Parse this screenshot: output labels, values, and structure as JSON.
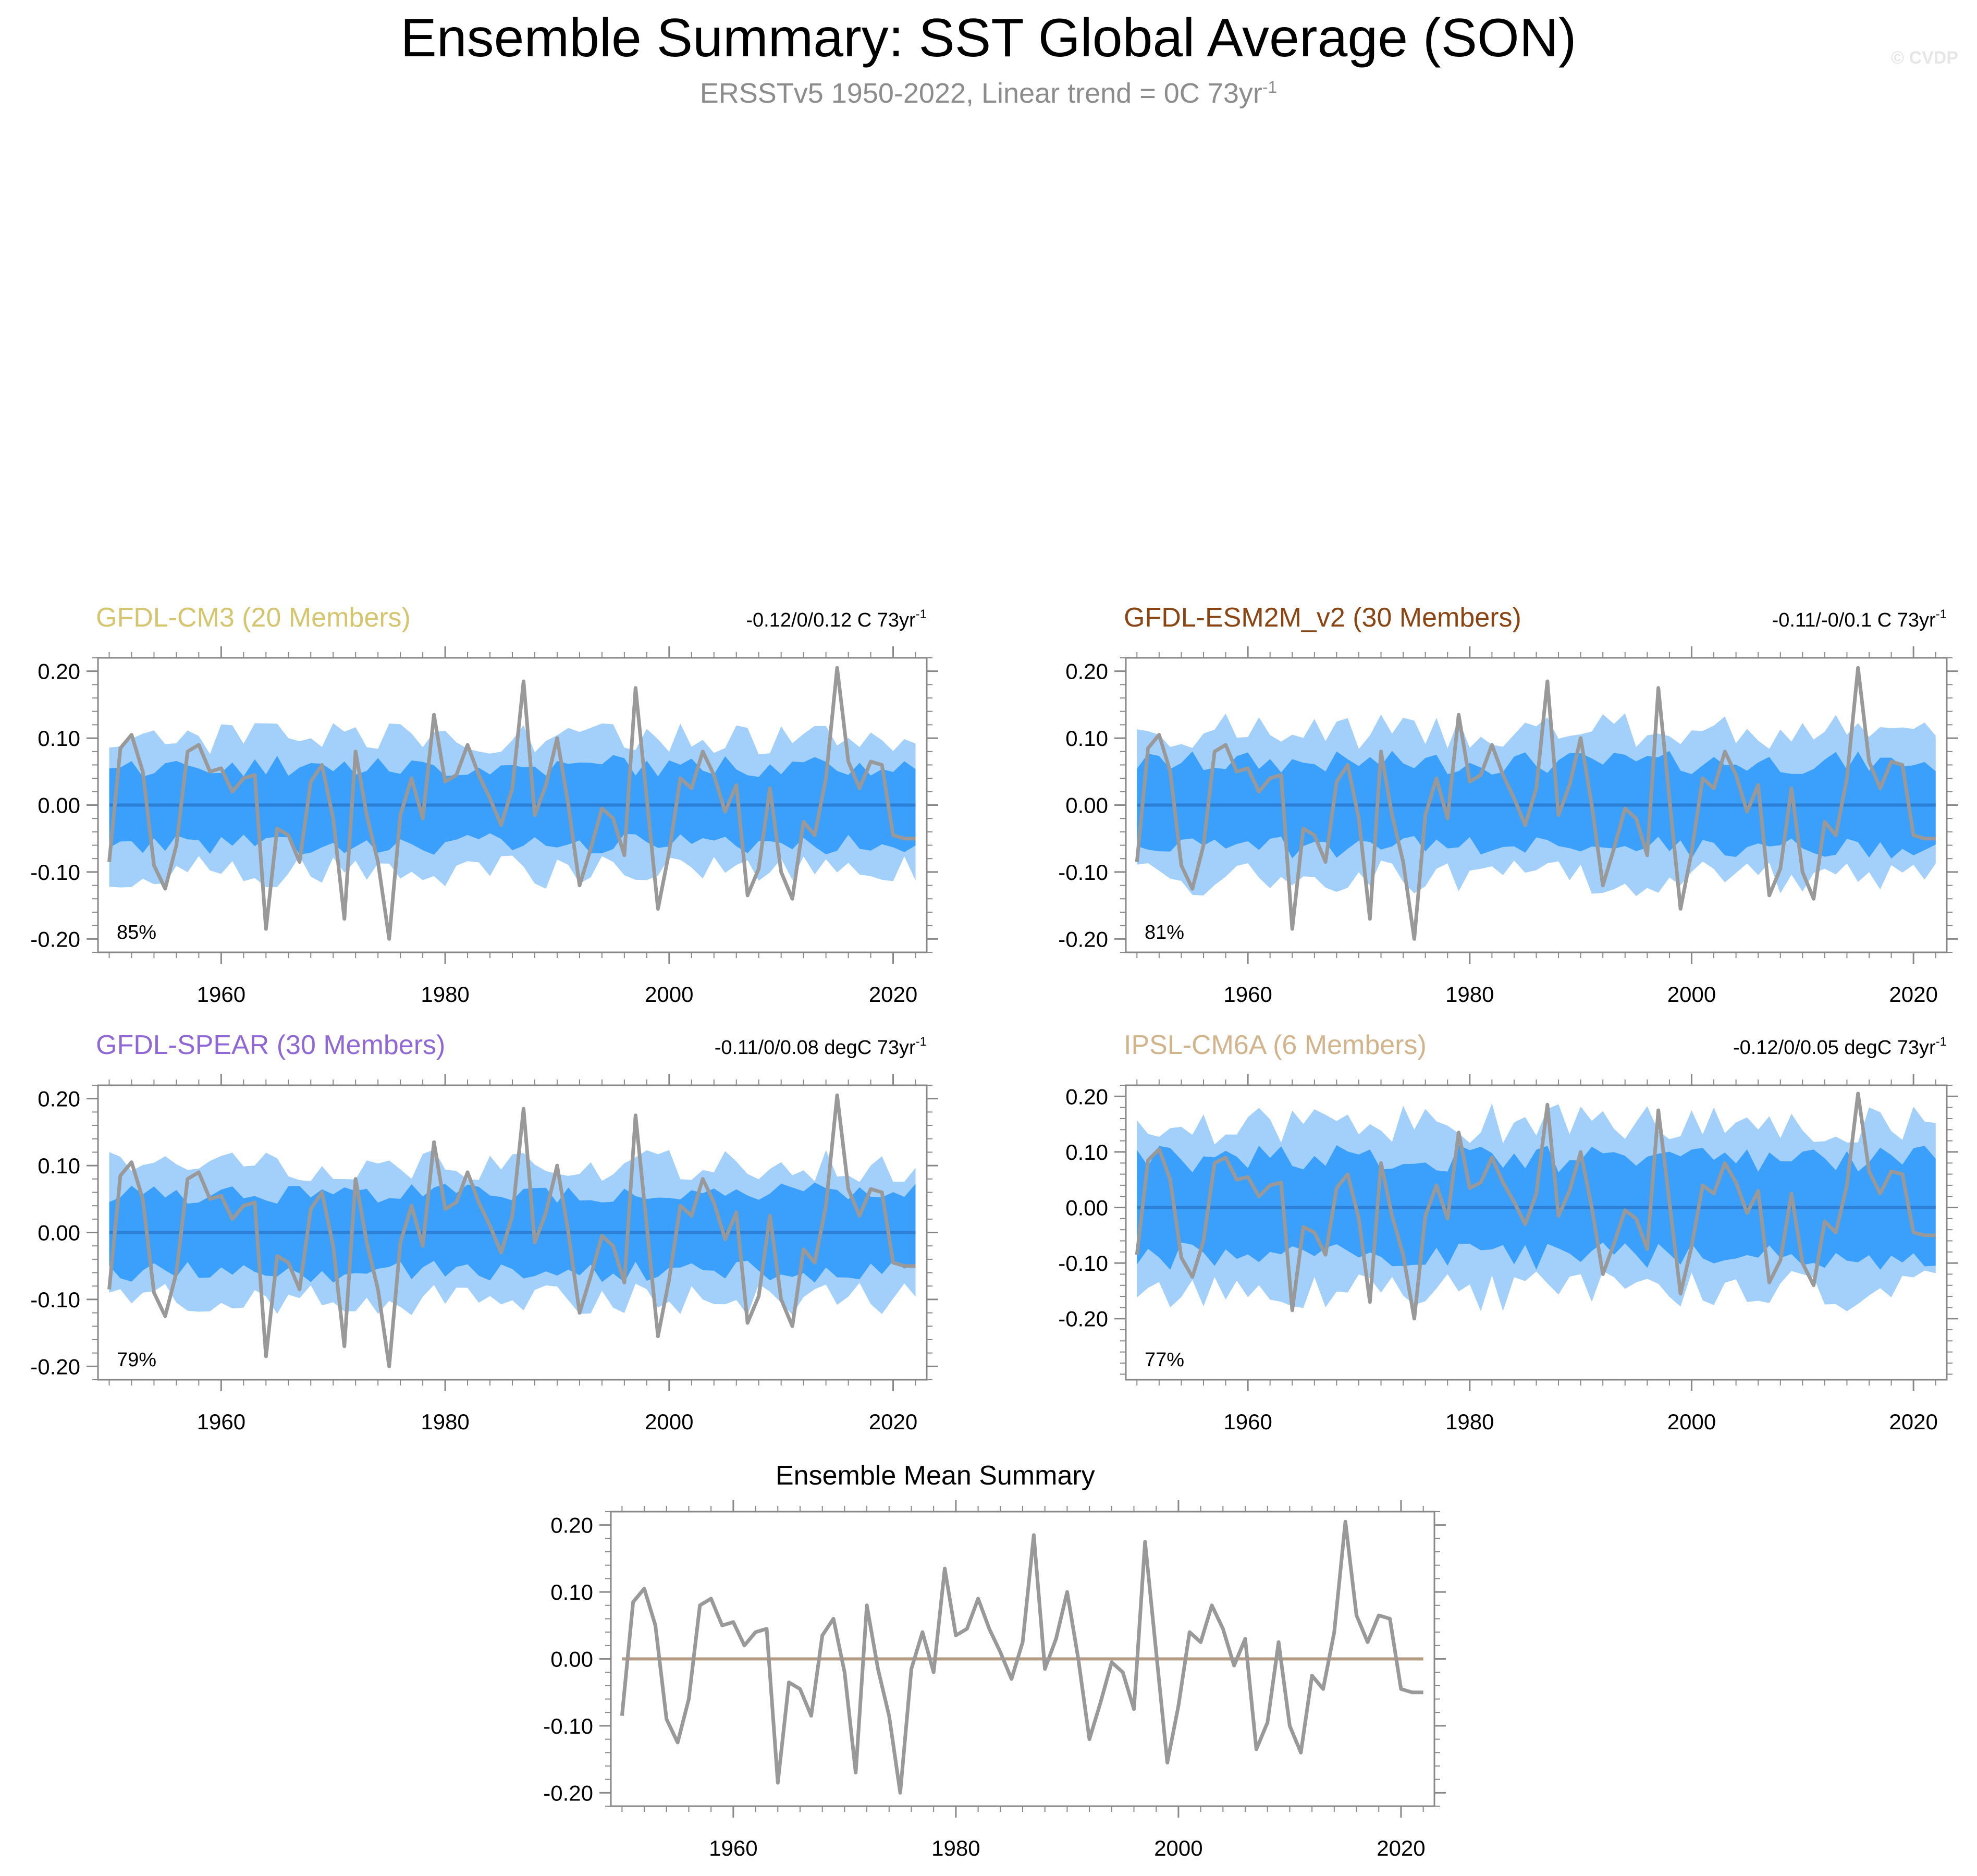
{
  "title": "Ensemble Summary: SST Global Average (SON)",
  "subtitle_main": "ERSSTv5 1950-2022, Linear trend = 0C 73yr",
  "subtitle_sup": "-1",
  "copyright": "© CVDP",
  "colors": {
    "outer_band": "#a3cffb",
    "inner_band": "#3aa0fb",
    "median_line": "#2b7fd6",
    "obs_line": "#999999",
    "mean_zero_line": "#b59c82",
    "title_cm3": "#d4c56e",
    "title_esm2m": "#8b4513",
    "title_spear": "#8f68d5",
    "title_ipsl": "#d2b48c"
  },
  "chart_data": [
    {
      "type": "area",
      "id": "cm3",
      "title": "GFDL-CM3 (20 Members)",
      "trend_text": "-0.12/0/0.12 C 73yr",
      "trend_sup": "-1",
      "percent": "85%",
      "xlim": [
        1949,
        2023
      ],
      "ylim": [
        -0.22,
        0.22
      ],
      "yticks": [
        "0.20",
        "0.10",
        "0.00",
        "-0.10",
        "-0.20"
      ],
      "xticks": [
        "1960",
        "1980",
        "2000",
        "2020"
      ],
      "outer_amp": 0.1,
      "inner_amp": 0.06,
      "seed": 3
    },
    {
      "type": "area",
      "id": "esm2m",
      "title": "GFDL-ESM2M_v2 (30 Members)",
      "trend_text": "-0.11/-0/0.1 C 73yr",
      "trend_sup": "-1",
      "percent": "81%",
      "xlim": [
        1949,
        2023
      ],
      "ylim": [
        -0.22,
        0.22
      ],
      "yticks": [
        "0.20",
        "0.10",
        "0.00",
        "-0.10",
        "-0.20"
      ],
      "xticks": [
        "1960",
        "1980",
        "2000",
        "2020"
      ],
      "outer_amp": 0.11,
      "inner_amp": 0.065,
      "seed": 7
    },
    {
      "type": "area",
      "id": "spear",
      "title": "GFDL-SPEAR (30 Members)",
      "trend_text": "-0.11/0/0.08 degC 73yr",
      "trend_sup": "-1",
      "percent": "79%",
      "xlim": [
        1949,
        2023
      ],
      "ylim": [
        -0.22,
        0.22
      ],
      "yticks": [
        "0.20",
        "0.10",
        "0.00",
        "-0.10",
        "-0.20"
      ],
      "xticks": [
        "1960",
        "1980",
        "2000",
        "2020"
      ],
      "outer_amp": 0.1,
      "inner_amp": 0.06,
      "seed": 11
    },
    {
      "type": "area",
      "id": "ipsl",
      "title": "IPSL-CM6A (6 Members)",
      "trend_text": "-0.12/0/0.05 degC 73yr",
      "trend_sup": "-1",
      "percent": "77%",
      "xlim": [
        1949,
        2023
      ],
      "ylim": [
        -0.31,
        0.22
      ],
      "yticks": [
        "0.20",
        "0.10",
        "0.00",
        "-0.10",
        "-0.20"
      ],
      "xticks": [
        "1960",
        "1980",
        "2000",
        "2020"
      ],
      "outer_amp": 0.15,
      "inner_amp": 0.09,
      "seed": 19
    },
    {
      "type": "line",
      "id": "mean",
      "title": "Ensemble Mean Summary",
      "xlim": [
        1949,
        2023
      ],
      "ylim": [
        -0.22,
        0.22
      ],
      "yticks": [
        "0.20",
        "0.10",
        "0.00",
        "-0.10",
        "-0.20"
      ],
      "xticks": [
        "1960",
        "1980",
        "2000",
        "2020"
      ]
    }
  ],
  "obs_series": {
    "name": "ERSSTv5",
    "x_start": 1950,
    "values": [
      -0.085,
      0.085,
      0.105,
      0.05,
      -0.09,
      -0.125,
      -0.06,
      0.08,
      0.09,
      0.05,
      0.055,
      0.02,
      0.04,
      0.045,
      -0.185,
      -0.035,
      -0.045,
      -0.085,
      0.035,
      0.06,
      -0.02,
      -0.17,
      0.08,
      -0.015,
      -0.085,
      -0.2,
      -0.015,
      0.04,
      -0.02,
      0.135,
      0.035,
      0.045,
      0.09,
      0.045,
      0.01,
      -0.03,
      0.025,
      0.185,
      -0.015,
      0.03,
      0.1,
      0.0,
      -0.12,
      -0.065,
      -0.005,
      -0.02,
      -0.075,
      0.175,
      0.01,
      -0.155,
      -0.07,
      0.04,
      0.025,
      0.08,
      0.045,
      -0.01,
      0.03,
      -0.135,
      -0.095,
      0.025,
      -0.1,
      -0.14,
      -0.025,
      -0.045,
      0.04,
      0.205,
      0.065,
      0.025,
      0.065,
      0.06,
      -0.045,
      -0.05,
      -0.05
    ]
  }
}
